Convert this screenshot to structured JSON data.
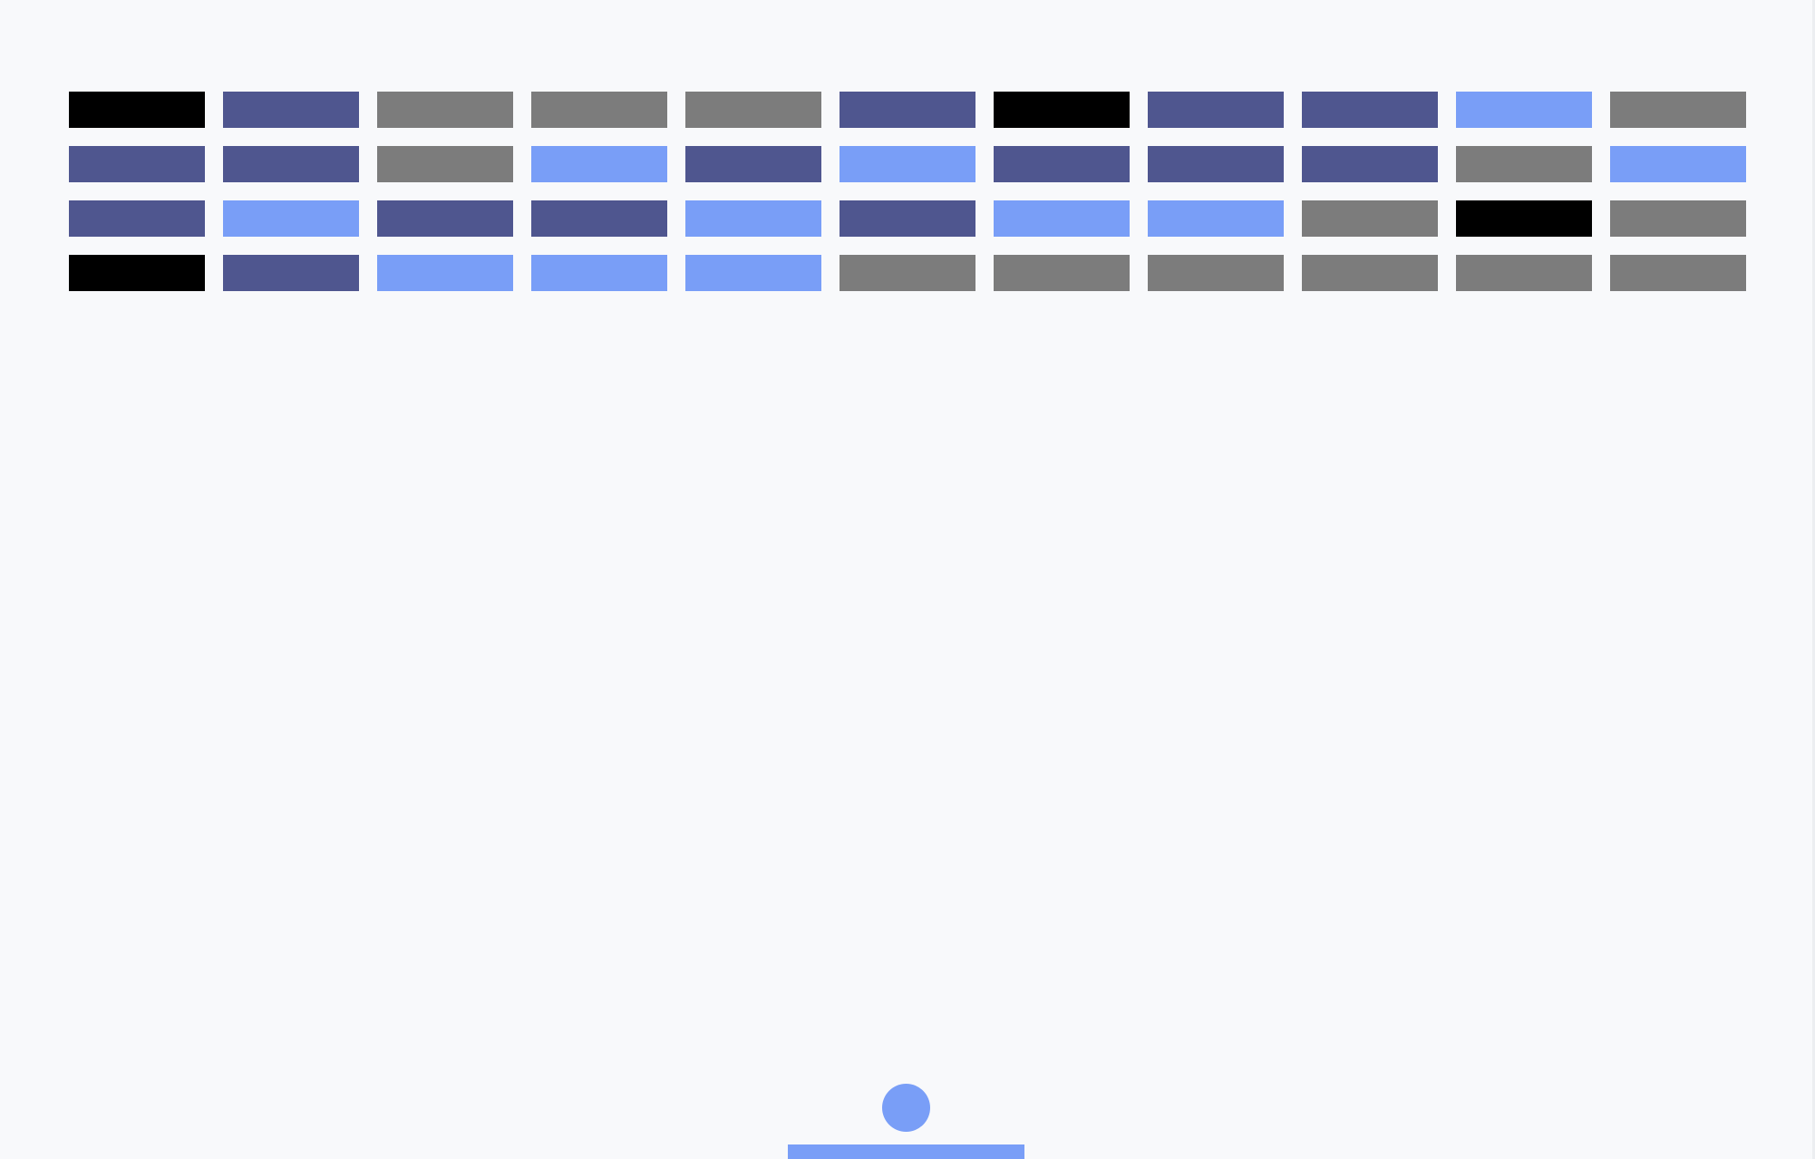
{
  "palette": {
    "background": "#f8f9fb",
    "black": "#000000",
    "navy": "#4f568f",
    "gray": "#7c7c7c",
    "blue": "#799ef7"
  },
  "bricks": [
    [
      "black",
      "navy",
      "gray",
      "gray",
      "gray",
      "navy",
      "black",
      "navy",
      "navy",
      "blue",
      "gray"
    ],
    [
      "navy",
      "navy",
      "gray",
      "blue",
      "navy",
      "blue",
      "navy",
      "navy",
      "navy",
      "gray",
      "blue"
    ],
    [
      "navy",
      "blue",
      "navy",
      "navy",
      "blue",
      "navy",
      "blue",
      "blue",
      "gray",
      "black",
      "gray"
    ],
    [
      "black",
      "navy",
      "blue",
      "blue",
      "blue",
      "gray",
      "gray",
      "gray",
      "gray",
      "gray",
      "gray"
    ]
  ],
  "ball": {
    "color": "blue"
  },
  "paddle": {
    "color": "blue"
  }
}
